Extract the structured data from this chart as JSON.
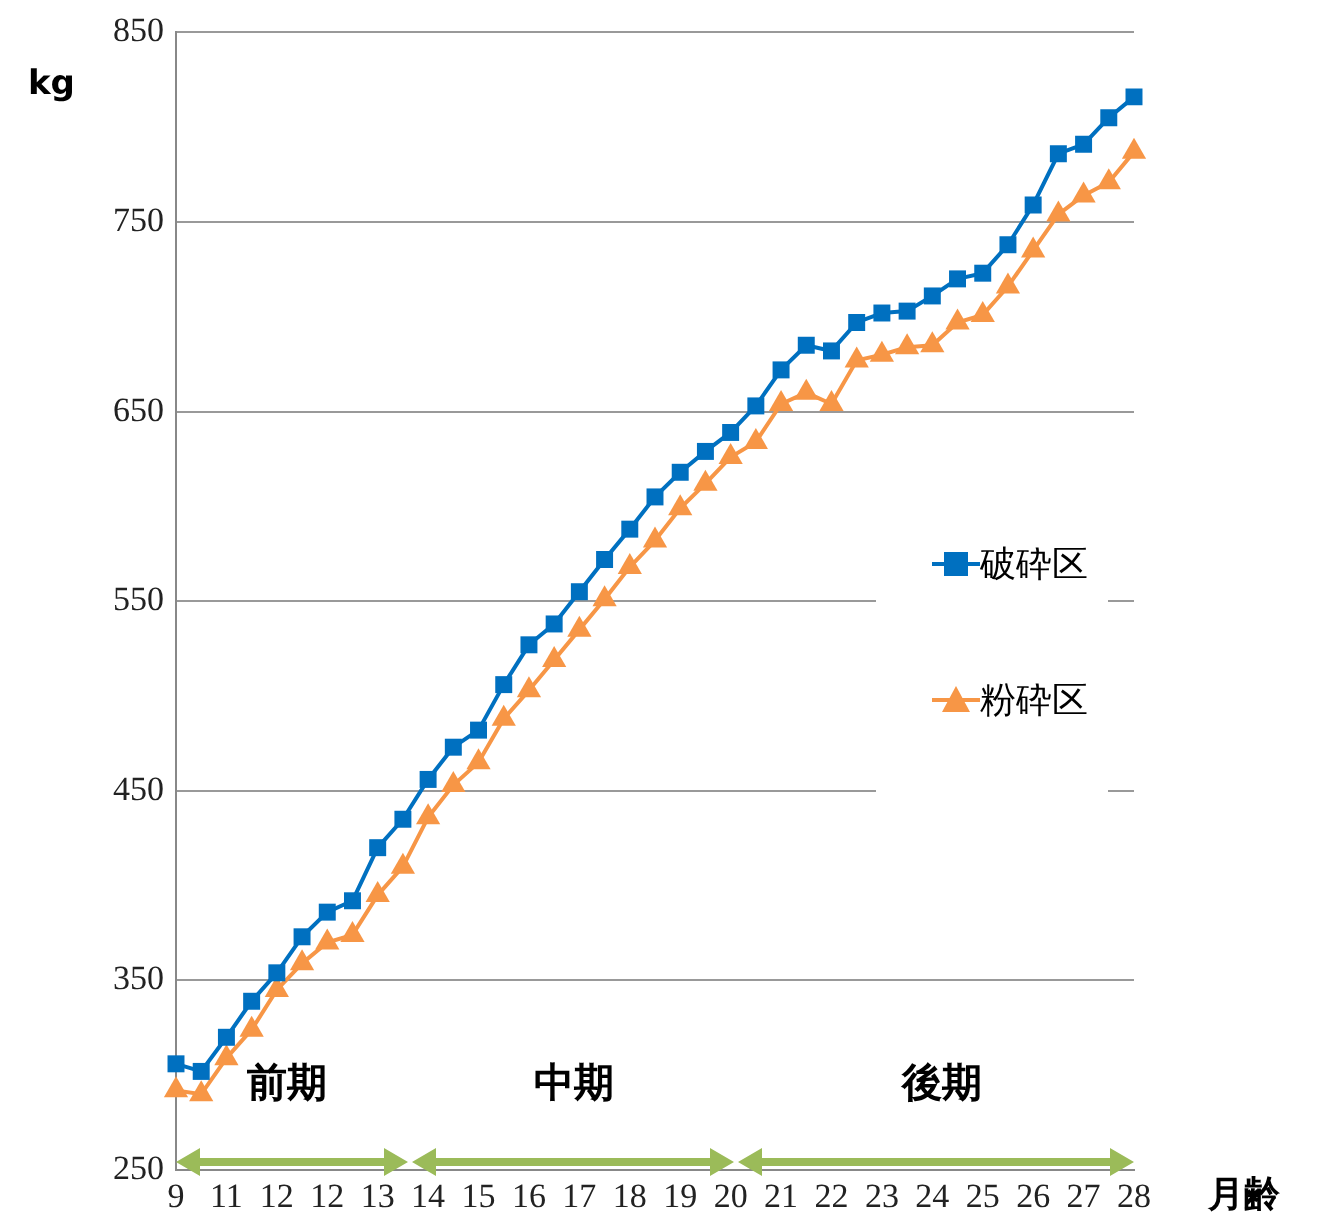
{
  "chart_data": {
    "type": "line",
    "xlabel": "月齢",
    "ylabel": "kg",
    "categories": [
      "9",
      null,
      "11",
      null,
      "12",
      null,
      "12",
      null,
      "13",
      null,
      "14",
      null,
      "15",
      null,
      "16",
      null,
      "17",
      null,
      "18",
      null,
      "19",
      null,
      "20",
      null,
      "21",
      null,
      "22",
      null,
      "23",
      null,
      "24",
      null,
      "25",
      null,
      "26",
      null,
      "27",
      null,
      "28"
    ],
    "series": [
      {
        "name": "破砕区",
        "color": "#0070c0",
        "marker": "square",
        "values": [
          306,
          302,
          320,
          339,
          354,
          373,
          386,
          392,
          420,
          435,
          456,
          473,
          482,
          506,
          527,
          538,
          555,
          572,
          588,
          605,
          618,
          629,
          639,
          653,
          672,
          685,
          682,
          697,
          702,
          703,
          711,
          720,
          723,
          738,
          759,
          786,
          791,
          805,
          816
        ]
      },
      {
        "name": "粉砕区",
        "color": "#f79646",
        "marker": "triangle",
        "values": [
          292,
          290,
          309,
          324,
          345,
          359,
          370,
          374,
          395,
          410,
          436,
          453,
          465,
          488,
          503,
          519,
          535,
          551,
          568,
          582,
          599,
          612,
          626,
          634,
          654,
          660,
          654,
          677,
          680,
          684,
          685,
          697,
          701,
          716,
          735,
          754,
          764,
          771,
          787
        ]
      }
    ],
    "ylim": [
      250,
      850
    ],
    "yticks": [
      250,
      350,
      450,
      550,
      650,
      750,
      850
    ],
    "grid": "y",
    "legend": "right",
    "annotations": [
      "前期",
      "中期",
      "後期"
    ]
  }
}
